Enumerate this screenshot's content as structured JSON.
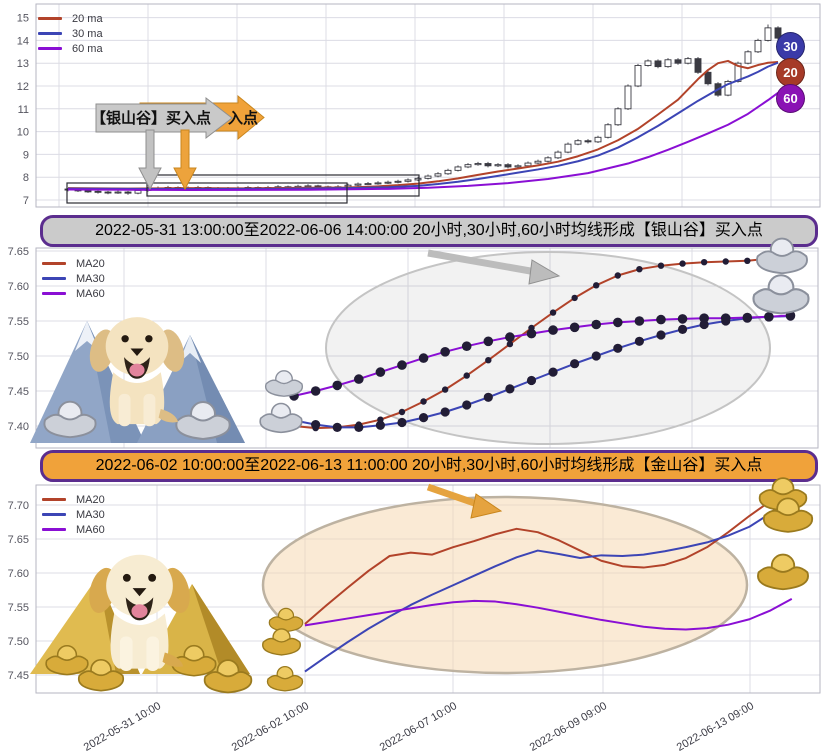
{
  "annotations": {
    "silver_banner": "【银山谷】买入点",
    "gold_banner_visible": "入点"
  },
  "colors": {
    "ma20": "#b2432a",
    "ma30": "#3c45b5",
    "ma60": "#8a0fd4",
    "badge20": "#a63a28",
    "badge30": "#3a3aa8",
    "badge60": "#8a12b4",
    "grid": "#dcdce4",
    "border": "#b6b6c2",
    "marker": "#221d36",
    "candle": "#3a3a42"
  },
  "chart_data": [
    {
      "type": "candlestick",
      "title": "",
      "legend": [
        "20 ma",
        "30 ma",
        "60 ma"
      ],
      "badges": [
        "30",
        "20",
        "60"
      ],
      "ylim": [
        7,
        15.6
      ],
      "yticks": [
        "15",
        "14",
        "13",
        "12",
        "11",
        "10",
        "9",
        "8",
        "7"
      ],
      "candles_ohlc": [
        [
          7.48,
          7.52,
          7.38,
          7.45
        ],
        [
          7.45,
          7.5,
          7.35,
          7.4
        ],
        [
          7.4,
          7.45,
          7.31,
          7.38
        ],
        [
          7.38,
          7.43,
          7.28,
          7.35
        ],
        [
          7.35,
          7.4,
          7.25,
          7.32
        ],
        [
          7.32,
          7.42,
          7.27,
          7.35
        ],
        [
          7.35,
          7.4,
          7.23,
          7.3
        ],
        [
          7.3,
          7.49,
          7.25,
          7.42
        ],
        [
          7.42,
          7.57,
          7.37,
          7.5
        ],
        [
          7.5,
          7.59,
          7.45,
          7.52
        ],
        [
          7.52,
          7.62,
          7.47,
          7.55
        ],
        [
          7.55,
          7.6,
          7.43,
          7.5
        ],
        [
          7.5,
          7.6,
          7.45,
          7.53
        ],
        [
          7.53,
          7.62,
          7.48,
          7.55
        ],
        [
          7.55,
          7.6,
          7.45,
          7.52
        ],
        [
          7.52,
          7.57,
          7.41,
          7.48
        ],
        [
          7.48,
          7.57,
          7.43,
          7.5
        ],
        [
          7.5,
          7.59,
          7.45,
          7.52
        ],
        [
          7.52,
          7.62,
          7.47,
          7.55
        ],
        [
          7.55,
          7.6,
          7.45,
          7.52
        ],
        [
          7.52,
          7.62,
          7.47,
          7.55
        ],
        [
          7.55,
          7.65,
          7.5,
          7.58
        ],
        [
          7.58,
          7.63,
          7.48,
          7.55
        ],
        [
          7.55,
          7.67,
          7.5,
          7.6
        ],
        [
          7.6,
          7.69,
          7.55,
          7.62
        ],
        [
          7.62,
          7.67,
          7.51,
          7.58
        ],
        [
          7.58,
          7.63,
          7.48,
          7.55
        ],
        [
          7.55,
          7.65,
          7.5,
          7.58
        ],
        [
          7.58,
          7.72,
          7.53,
          7.65
        ],
        [
          7.65,
          7.77,
          7.6,
          7.7
        ],
        [
          7.7,
          7.79,
          7.65,
          7.72
        ],
        [
          7.72,
          7.82,
          7.67,
          7.75
        ],
        [
          7.75,
          7.85,
          7.7,
          7.78
        ],
        [
          7.78,
          7.89,
          7.73,
          7.82
        ],
        [
          7.82,
          7.95,
          7.77,
          7.88
        ],
        [
          7.88,
          8.02,
          7.83,
          7.95
        ],
        [
          7.95,
          8.12,
          7.9,
          8.05
        ],
        [
          8.05,
          8.22,
          8.0,
          8.15
        ],
        [
          8.15,
          8.37,
          8.1,
          8.3
        ],
        [
          8.3,
          8.52,
          8.25,
          8.45
        ],
        [
          8.45,
          8.62,
          8.4,
          8.55
        ],
        [
          8.55,
          8.67,
          8.5,
          8.6
        ],
        [
          8.6,
          8.67,
          8.43,
          8.5
        ],
        [
          8.5,
          8.62,
          8.45,
          8.55
        ],
        [
          8.55,
          8.62,
          8.38,
          8.45
        ],
        [
          8.45,
          8.57,
          8.4,
          8.5
        ],
        [
          8.5,
          8.69,
          8.45,
          8.62
        ],
        [
          8.62,
          8.77,
          8.57,
          8.7
        ],
        [
          8.7,
          8.92,
          8.65,
          8.85
        ],
        [
          8.85,
          9.17,
          8.8,
          9.1
        ],
        [
          9.1,
          9.52,
          9.05,
          9.45
        ],
        [
          9.45,
          9.67,
          9.4,
          9.6
        ],
        [
          9.6,
          9.67,
          9.48,
          9.55
        ],
        [
          9.55,
          9.82,
          9.5,
          9.75
        ],
        [
          9.75,
          10.37,
          9.7,
          10.3
        ],
        [
          10.3,
          11.07,
          10.25,
          11.0
        ],
        [
          11.0,
          12.07,
          10.95,
          12.0
        ],
        [
          12.0,
          12.97,
          11.95,
          12.9
        ],
        [
          12.9,
          13.17,
          12.85,
          13.1
        ],
        [
          13.1,
          13.17,
          12.78,
          12.85
        ],
        [
          12.85,
          13.22,
          12.8,
          13.15
        ],
        [
          13.15,
          13.22,
          12.93,
          13.0
        ],
        [
          13.0,
          13.27,
          12.95,
          13.2
        ],
        [
          13.2,
          13.27,
          12.53,
          12.6
        ],
        [
          12.6,
          12.67,
          12.03,
          12.1
        ],
        [
          12.1,
          12.17,
          11.53,
          11.6
        ],
        [
          11.6,
          12.27,
          11.55,
          12.2
        ],
        [
          12.2,
          13.07,
          12.15,
          13.0
        ],
        [
          13.0,
          13.57,
          12.95,
          13.5
        ],
        [
          13.5,
          14.07,
          13.45,
          14.0
        ],
        [
          14.0,
          14.7,
          13.95,
          14.55
        ],
        [
          14.55,
          14.62,
          14.03,
          14.1
        ]
      ],
      "series": [
        {
          "name": "20 ma",
          "points": [
            [
              0,
              7.52
            ],
            [
              6,
              7.5
            ],
            [
              12,
              7.52
            ],
            [
              18,
              7.51
            ],
            [
              24,
              7.54
            ],
            [
              28,
              7.55
            ],
            [
              31,
              7.6
            ],
            [
              33,
              7.65
            ],
            [
              35,
              7.72
            ],
            [
              37,
              7.82
            ],
            [
              39,
              7.95
            ],
            [
              41,
              8.1
            ],
            [
              43,
              8.25
            ],
            [
              45,
              8.38
            ],
            [
              47,
              8.52
            ],
            [
              49,
              8.68
            ],
            [
              51,
              8.92
            ],
            [
              53,
              9.22
            ],
            [
              55,
              9.62
            ],
            [
              57,
              10.12
            ],
            [
              59,
              10.75
            ],
            [
              61,
              11.4
            ],
            [
              63,
              12.3
            ],
            [
              64,
              12.7
            ],
            [
              65,
              13.0
            ],
            [
              66,
              13.1
            ],
            [
              67,
              12.88
            ],
            [
              68,
              12.78
            ],
            [
              69,
              12.92
            ],
            [
              70,
              13.02
            ],
            [
              71,
              13.05
            ]
          ]
        },
        {
          "name": "30 ma",
          "points": [
            [
              0,
              7.5
            ],
            [
              10,
              7.48
            ],
            [
              20,
              7.49
            ],
            [
              28,
              7.52
            ],
            [
              32,
              7.56
            ],
            [
              35,
              7.62
            ],
            [
              37,
              7.7
            ],
            [
              39,
              7.8
            ],
            [
              41,
              7.92
            ],
            [
              43,
              8.06
            ],
            [
              45,
              8.2
            ],
            [
              47,
              8.34
            ],
            [
              49,
              8.5
            ],
            [
              51,
              8.7
            ],
            [
              53,
              8.95
            ],
            [
              55,
              9.3
            ],
            [
              57,
              9.75
            ],
            [
              59,
              10.25
            ],
            [
              61,
              10.8
            ],
            [
              63,
              11.35
            ],
            [
              65,
              11.85
            ],
            [
              66,
              12.08
            ],
            [
              67,
              12.25
            ],
            [
              68,
              12.42
            ],
            [
              69,
              12.62
            ],
            [
              70,
              12.85
            ],
            [
              71,
              13.02
            ]
          ]
        },
        {
          "name": "60 ma",
          "points": [
            [
              0,
              7.46
            ],
            [
              12,
              7.44
            ],
            [
              24,
              7.45
            ],
            [
              32,
              7.49
            ],
            [
              36,
              7.54
            ],
            [
              40,
              7.62
            ],
            [
              44,
              7.74
            ],
            [
              48,
              7.92
            ],
            [
              52,
              8.18
            ],
            [
              56,
              8.6
            ],
            [
              58,
              8.88
            ],
            [
              60,
              9.2
            ],
            [
              62,
              9.55
            ],
            [
              64,
              9.92
            ],
            [
              66,
              10.3
            ],
            [
              68,
              10.78
            ],
            [
              70,
              11.38
            ],
            [
              71,
              11.7
            ]
          ]
        }
      ]
    },
    {
      "type": "line",
      "title": "2022-05-31 13:00:00至2022-06-06 14:00:00 20小时,30小时,60小时均线形成【银山谷】买入点",
      "legend": [
        "MA20",
        "MA30",
        "MA60"
      ],
      "ylim": [
        7.37,
        7.66
      ],
      "yticks": [
        "7.65",
        "7.60",
        "7.55",
        "7.50",
        "7.45",
        "7.40"
      ],
      "x_start_pct": 33,
      "x_step_pct": 2.76,
      "series": [
        {
          "name": "MA20",
          "marker": true,
          "values": [
            7.4,
            7.397,
            7.398,
            7.402,
            7.409,
            7.42,
            7.435,
            7.452,
            7.472,
            7.494,
            7.517,
            7.54,
            7.562,
            7.583,
            7.601,
            7.615,
            7.624,
            7.629,
            7.632,
            7.634,
            7.635,
            7.636,
            7.639,
            7.643
          ]
        },
        {
          "name": "MA30",
          "marker": true,
          "values": [
            7.408,
            7.402,
            7.398,
            7.398,
            7.401,
            7.405,
            7.412,
            7.42,
            7.43,
            7.441,
            7.453,
            7.465,
            7.477,
            7.489,
            7.5,
            7.511,
            7.521,
            7.53,
            7.538,
            7.545,
            7.55,
            7.554,
            7.556,
            7.557
          ]
        },
        {
          "name": "MA60",
          "marker": true,
          "values": [
            7.443,
            7.45,
            7.458,
            7.467,
            7.477,
            7.487,
            7.497,
            7.506,
            7.514,
            7.521,
            7.527,
            7.532,
            7.537,
            7.541,
            7.545,
            7.548,
            7.55,
            7.552,
            7.553,
            7.554,
            7.554,
            7.555,
            7.556,
            7.558
          ]
        }
      ]
    },
    {
      "type": "line",
      "title": "2022-06-02 10:00:00至2022-06-13 11:00:00 20小时,30小时,60小时均线形成【金山谷】买入点",
      "legend": [
        "MA20",
        "MA30",
        "MA60"
      ],
      "ylim": [
        7.42,
        7.73
      ],
      "yticks": [
        "7.70",
        "7.65",
        "7.60",
        "7.55",
        "7.50",
        "7.45"
      ],
      "x_start_pct": 34.3,
      "x_step_pct": 2.7,
      "xticks": [
        "2022-05-31 10:00",
        "2022-06-02 10:00",
        "2022-06-07 10:00",
        "2022-06-09 09:00",
        "2022-06-13 09:00"
      ],
      "series": [
        {
          "name": "MA20",
          "marker": false,
          "values": [
            7.525,
            7.552,
            7.578,
            7.603,
            7.625,
            7.63,
            7.627,
            7.638,
            7.647,
            7.657,
            7.665,
            7.66,
            7.648,
            7.633,
            7.618,
            7.61,
            7.608,
            7.612,
            7.622,
            7.638,
            7.66,
            7.684,
            7.706,
            7.72
          ]
        },
        {
          "name": "MA30",
          "marker": false,
          "values": [
            7.455,
            7.477,
            7.498,
            7.518,
            7.536,
            7.553,
            7.568,
            7.582,
            7.596,
            7.61,
            7.623,
            7.633,
            7.628,
            7.622,
            7.626,
            7.625,
            7.627,
            7.632,
            7.638,
            7.645,
            7.655,
            7.668,
            7.688,
            7.715
          ]
        },
        {
          "name": "MA60",
          "marker": false,
          "values": [
            7.523,
            7.528,
            7.533,
            7.538,
            7.543,
            7.548,
            7.553,
            7.557,
            7.559,
            7.558,
            7.554,
            7.549,
            7.543,
            7.537,
            7.531,
            7.526,
            7.521,
            7.518,
            7.517,
            7.519,
            7.524,
            7.532,
            7.545,
            7.562
          ]
        }
      ]
    }
  ]
}
